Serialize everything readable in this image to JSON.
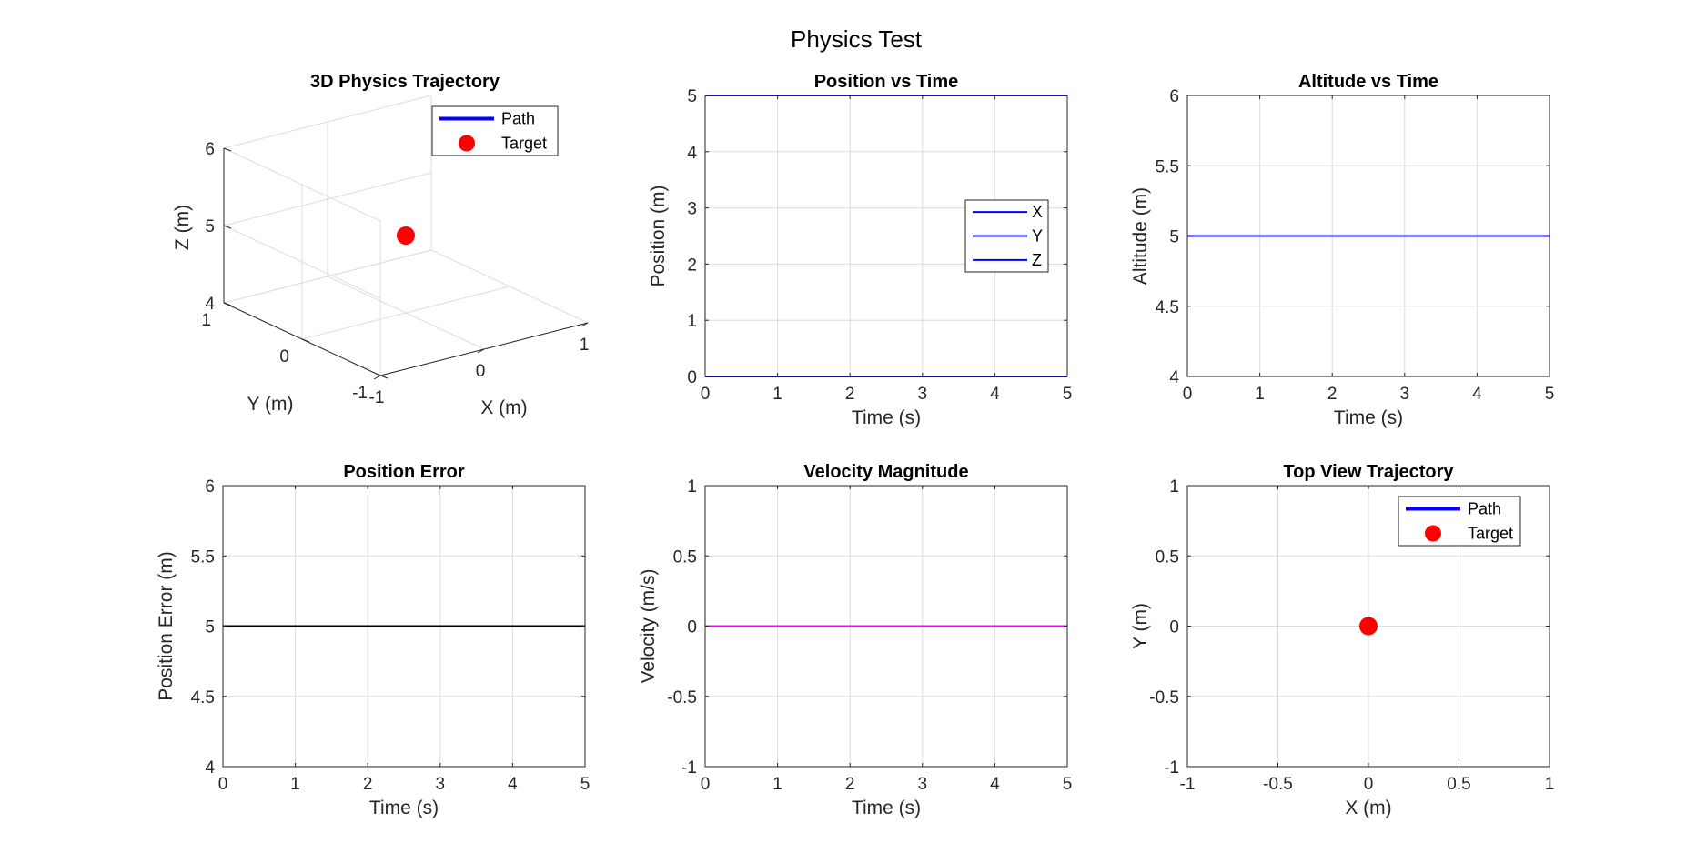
{
  "figure": {
    "title": "Physics Test"
  },
  "chart_data": [
    {
      "id": "traj3d",
      "type": "scatter3d",
      "title": "3D Physics Trajectory",
      "xlabel": "X (m)",
      "ylabel": "Y (m)",
      "zlabel": "Z (m)",
      "xlim": [
        -1,
        1
      ],
      "ylim": [
        -1,
        1
      ],
      "zlim": [
        4,
        6
      ],
      "xticks": [
        "-1",
        "0",
        "1"
      ],
      "yticks": [
        "-1",
        "0",
        "1"
      ],
      "zticks": [
        "4",
        "5",
        "6"
      ],
      "grid": true,
      "legend": {
        "placement": "top-right",
        "entries": [
          {
            "label": "Path",
            "kind": "line",
            "color": "#0000ff"
          },
          {
            "label": "Target",
            "kind": "marker",
            "color": "#ff0000"
          }
        ]
      },
      "series": [
        {
          "name": "Path",
          "color": "#0000ff",
          "points": [
            [
              0,
              0,
              5
            ]
          ]
        },
        {
          "name": "Target",
          "kind": "marker",
          "color": "#ff0000",
          "points": [
            [
              0,
              0,
              5
            ]
          ]
        }
      ]
    },
    {
      "id": "pos",
      "type": "line",
      "title": "Position vs Time",
      "xlabel": "Time (s)",
      "ylabel": "Position (m)",
      "xlim": [
        0,
        5
      ],
      "ylim": [
        0,
        5
      ],
      "xticks": [
        "0",
        "1",
        "2",
        "3",
        "4",
        "5"
      ],
      "yticks": [
        "0",
        "1",
        "2",
        "3",
        "4",
        "5"
      ],
      "grid": true,
      "legend": {
        "placement": "right",
        "entries": [
          {
            "label": "X",
            "kind": "line",
            "color": "#0000ff"
          },
          {
            "label": "Y",
            "kind": "line",
            "color": "#0000ff"
          },
          {
            "label": "Z",
            "kind": "line",
            "color": "#0000ff"
          }
        ]
      },
      "series": [
        {
          "name": "X",
          "color": "#0000ff",
          "x": [
            0,
            5
          ],
          "y": [
            0,
            0
          ]
        },
        {
          "name": "Y",
          "color": "#0000ff",
          "x": [
            0,
            5
          ],
          "y": [
            0,
            0
          ]
        },
        {
          "name": "Z",
          "color": "#0000ff",
          "x": [
            0,
            5
          ],
          "y": [
            5,
            5
          ]
        }
      ]
    },
    {
      "id": "alt",
      "type": "line",
      "title": "Altitude vs Time",
      "xlabel": "Time (s)",
      "ylabel": "Altitude (m)",
      "xlim": [
        0,
        5
      ],
      "ylim": [
        4,
        6
      ],
      "xticks": [
        "0",
        "1",
        "2",
        "3",
        "4",
        "5"
      ],
      "yticks": [
        "4",
        "4.5",
        "5",
        "5.5",
        "6"
      ],
      "grid": true,
      "series": [
        {
          "color": "#0000ff",
          "x": [
            0,
            5
          ],
          "y": [
            5,
            5
          ]
        }
      ]
    },
    {
      "id": "err",
      "type": "line",
      "title": "Position Error",
      "xlabel": "Time (s)",
      "ylabel": "Position Error (m)",
      "xlim": [
        0,
        5
      ],
      "ylim": [
        4,
        6
      ],
      "xticks": [
        "0",
        "1",
        "2",
        "3",
        "4",
        "5"
      ],
      "yticks": [
        "4",
        "4.5",
        "5",
        "5.5",
        "6"
      ],
      "grid": true,
      "series": [
        {
          "color": "#000000",
          "x": [
            0,
            5
          ],
          "y": [
            5,
            5
          ]
        }
      ]
    },
    {
      "id": "vel",
      "type": "line",
      "title": "Velocity Magnitude",
      "xlabel": "Time (s)",
      "ylabel": "Velocity (m/s)",
      "xlim": [
        0,
        5
      ],
      "ylim": [
        -1,
        1
      ],
      "xticks": [
        "0",
        "1",
        "2",
        "3",
        "4",
        "5"
      ],
      "yticks": [
        "-1",
        "-0.5",
        "0",
        "0.5",
        "1"
      ],
      "grid": true,
      "series": [
        {
          "color": "#ff00ff",
          "x": [
            0,
            5
          ],
          "y": [
            0,
            0
          ]
        }
      ]
    },
    {
      "id": "top",
      "type": "scatter",
      "title": "Top View Trajectory",
      "xlabel": "X (m)",
      "ylabel": "Y (m)",
      "xlim": [
        -1,
        1
      ],
      "ylim": [
        -1,
        1
      ],
      "xticks": [
        "-1",
        "-0.5",
        "0",
        "0.5",
        "1"
      ],
      "yticks": [
        "-1",
        "-0.5",
        "0",
        "0.5",
        "1"
      ],
      "grid": true,
      "legend": {
        "placement": "top-right",
        "entries": [
          {
            "label": "Path",
            "kind": "line",
            "color": "#0000ff"
          },
          {
            "label": "Target",
            "kind": "marker",
            "color": "#ff0000"
          }
        ]
      },
      "series": [
        {
          "name": "Path",
          "color": "#0000ff",
          "x": [
            0
          ],
          "y": [
            0
          ]
        },
        {
          "name": "Target",
          "kind": "marker",
          "color": "#ff0000",
          "x": [
            0
          ],
          "y": [
            0
          ]
        }
      ]
    }
  ]
}
